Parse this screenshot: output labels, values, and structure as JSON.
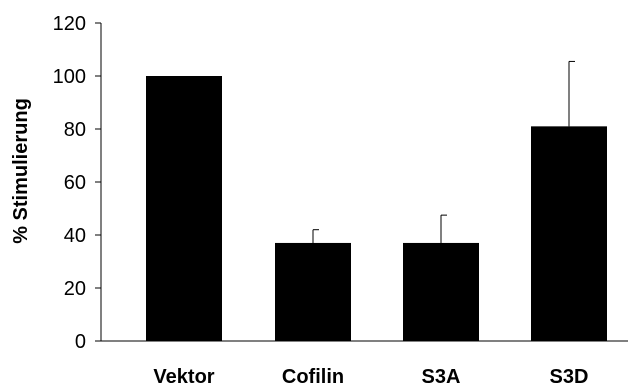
{
  "chart_data": {
    "type": "bar",
    "title": "",
    "xlabel": "",
    "ylabel": "% Stimulierung",
    "categories": [
      "Vektor",
      "Cofilin",
      "S3A",
      "S3D"
    ],
    "values": [
      100,
      37,
      37,
      81
    ],
    "error_bars_upper": [
      0,
      5,
      10.5,
      24.5
    ],
    "ylim": [
      0,
      120
    ],
    "yticks": [
      0,
      20,
      40,
      60,
      80,
      100,
      120
    ],
    "ytick_labels": [
      "0",
      "20",
      "40",
      "60",
      "80",
      "100",
      "120"
    ],
    "grid": false,
    "legend": "none",
    "colors": {
      "bar": "#000000",
      "axis": "#000000",
      "background": "#ffffff"
    }
  }
}
